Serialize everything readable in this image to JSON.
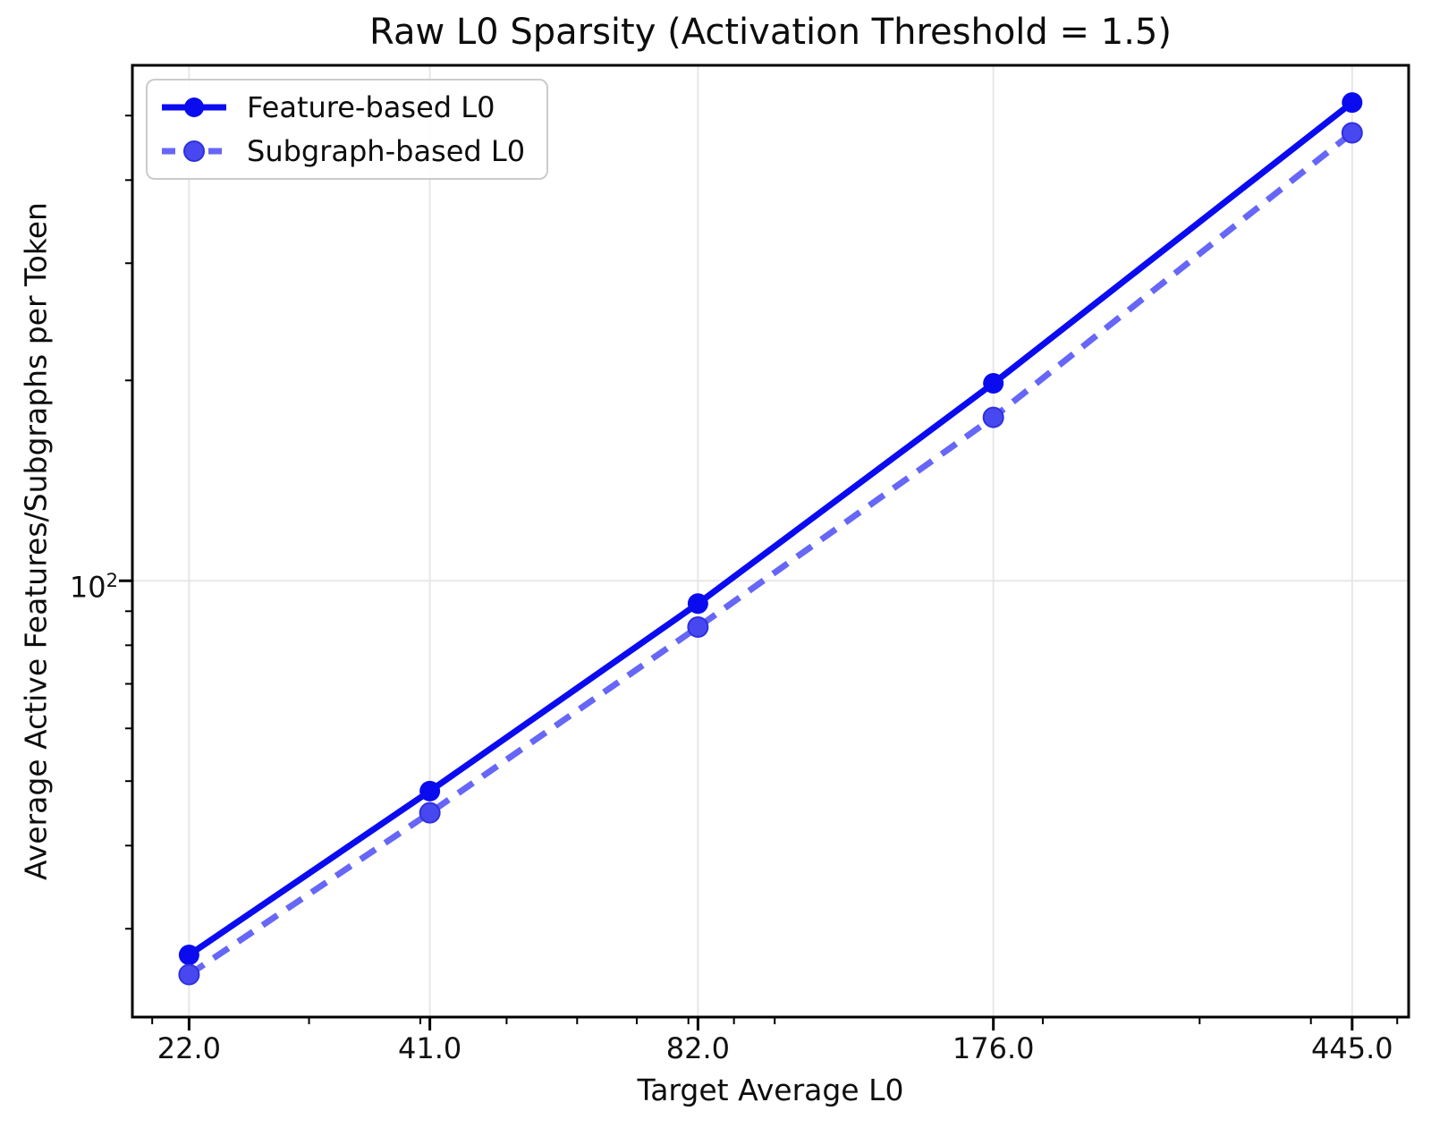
{
  "chart_data": {
    "type": "line",
    "title": "Raw L0 Sparsity (Activation Threshold = 1.5)",
    "xlabel": "Target Average L0",
    "ylabel": "Average Active Features/Subgraphs per Token",
    "xscale": "log",
    "yscale": "log",
    "grid": true,
    "legend_position": "upper left",
    "x": [
      22.0,
      41.0,
      82.0,
      176.0,
      445.0
    ],
    "x_tick_labels": [
      "22.0",
      "41.0",
      "82.0",
      "176.0",
      "445.0"
    ],
    "y_tick": {
      "base": "10",
      "exponent": "2",
      "value": 100
    },
    "x_range": [
      19.0,
      515
    ],
    "y_range": [
      22.1,
      595
    ],
    "x_minor_ticks": [
      20,
      30,
      40,
      50,
      60,
      70,
      80,
      90,
      100,
      200,
      300,
      400,
      500
    ],
    "y_minor_ticks": [
      30,
      40,
      50,
      60,
      70,
      80,
      90,
      200,
      300,
      400,
      500
    ],
    "y_gridlines": [
      100
    ],
    "series": [
      {
        "name": "Feature-based L0",
        "style": "solid",
        "values": [
          27.4,
          48.3,
          92.4,
          198,
          523
        ]
      },
      {
        "name": "Subgraph-based L0",
        "style": "dashed",
        "values": [
          25.6,
          44.8,
          85.2,
          176,
          471
        ]
      }
    ],
    "colors": {
      "feature": "#0b0bf0",
      "subgraph_line": "#6666f7",
      "subgraph_marker_fill": "#4848f0",
      "subgraph_marker_edge": "#3030e0",
      "grid": "#e7e7e7",
      "axis": "#000000",
      "legend_border": "#cbcbcb"
    }
  }
}
